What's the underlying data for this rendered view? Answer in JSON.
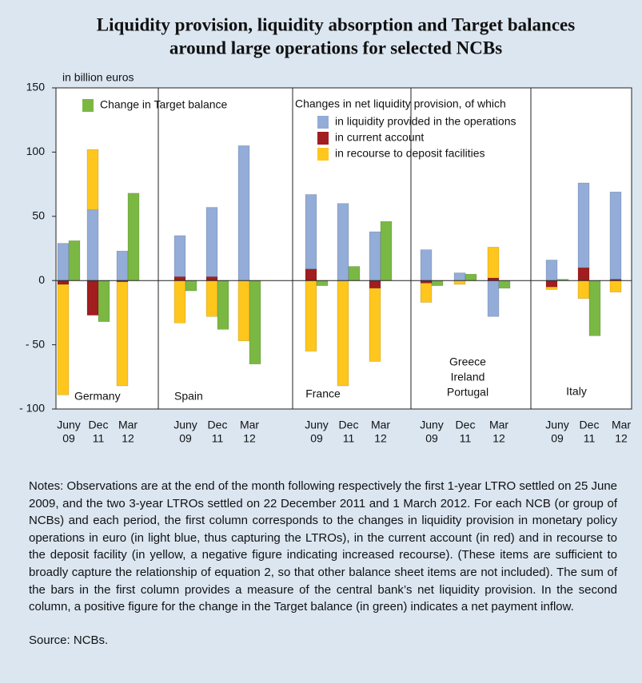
{
  "chart_data": {
    "type": "grouped-stacked-bar",
    "title": [
      "Liquidity provision, liquidity absorption and Target balances",
      "around large operations for selected NCBs"
    ],
    "y_label": "in billion euros",
    "groups": [
      [
        "Germany"
      ],
      [
        "Spain"
      ],
      [
        "France"
      ],
      [
        "Greece",
        "Ireland",
        "Portugal"
      ],
      [
        "Italy"
      ]
    ],
    "periods": [
      [
        "Juny",
        "09"
      ],
      [
        "Dec",
        "11"
      ],
      [
        "Mar",
        "12"
      ]
    ],
    "legend_heading": "Changes in net liquidity provision, of which",
    "series": [
      {
        "name": "in current account",
        "color": "#a11d1f",
        "stack": "net",
        "values": [
          -3,
          -27,
          -1,
          3,
          3,
          0,
          9,
          0,
          -6,
          -2,
          0,
          2,
          -5,
          10,
          1
        ]
      },
      {
        "name": "in liquidity provided in the operations",
        "color": "#93acd8",
        "stack": "net",
        "values": [
          29,
          55,
          23,
          32,
          54,
          105,
          58,
          60,
          38,
          24,
          6,
          -28,
          16,
          66,
          68
        ]
      },
      {
        "name": "in recourse to deposit facilities",
        "color": "#ffc61e",
        "stack": "net",
        "values": [
          -86,
          47,
          -81,
          -33,
          -28,
          -47,
          -55,
          -82,
          -57,
          -15,
          -3,
          24,
          -2,
          -14,
          -9
        ]
      },
      {
        "name": "Change in Target balance",
        "color": "#7ab843",
        "stack": "target",
        "values": [
          31,
          -32,
          68,
          -8,
          -38,
          -65,
          -4,
          11,
          46,
          -4,
          5,
          -6,
          1,
          -43,
          0
        ]
      }
    ],
    "ylim": [
      -100,
      150
    ],
    "yticks": [
      {
        "value": -100,
        "label": "- 100"
      },
      {
        "value": -50,
        "label": "- 50"
      },
      0,
      50,
      100,
      150
    ],
    "notes": "Notes: Observations are at the end of the month following respectively the first 1-year LTRO settled on 25 June 2009, and the two 3-year LTROs settled on 22 December 2011 and 1 March 2012. For each NCB (or group of NCBs) and each period, the first column corresponds to the changes in liquidity provision in monetary policy operations in euro (in light blue, thus capturing the LTROs), in the current account (in red) and in recourse to the deposit facility (in yellow, a negative figure indicating increased recourse). (These items are sufficient to broadly capture the relationship of equation 2, so that other balance sheet items are not included). The sum of the bars in the first column provides a measure of the central bank’s net liquidity provision. In the second column, a positive figure for the change in the Target balance (in green) indicates a net payment inflow.",
    "source": "Source: NCBs."
  }
}
